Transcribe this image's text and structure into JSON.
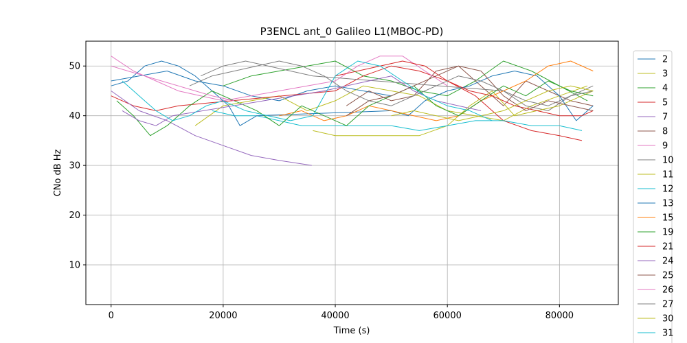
{
  "chart_data": {
    "type": "line",
    "title": "P3ENCL ant_0 Galileo L1(MBOC-PD)",
    "xlabel": "Time (s)",
    "ylabel": "CNo dB Hz",
    "xlim": [
      -4500,
      90500
    ],
    "ylim": [
      2,
      55
    ],
    "xticks": [
      0,
      20000,
      40000,
      60000,
      80000
    ],
    "yticks": [
      10,
      20,
      30,
      40,
      50
    ],
    "grid": true,
    "legend_position": "right-outside",
    "series": [
      {
        "name": "2",
        "color": "#1f77b4",
        "points": [
          [
            0,
            47
          ],
          [
            5000,
            48
          ],
          [
            10000,
            49
          ],
          [
            15000,
            47
          ],
          [
            20000,
            46
          ],
          [
            25000,
            44
          ],
          [
            30000,
            43
          ],
          [
            35000,
            45
          ],
          [
            40000,
            46
          ],
          [
            45000,
            45
          ],
          [
            50000,
            44
          ]
        ]
      },
      {
        "name": "3",
        "color": "#bcbd22",
        "points": [
          [
            15000,
            38
          ],
          [
            20000,
            42
          ],
          [
            25000,
            43
          ],
          [
            30000,
            44
          ],
          [
            35000,
            41
          ],
          [
            40000,
            43
          ],
          [
            45000,
            46
          ],
          [
            50000,
            45
          ],
          [
            55000,
            44
          ],
          [
            60000,
            41
          ],
          [
            65000,
            40
          ],
          [
            70000,
            39
          ],
          [
            75000,
            42
          ],
          [
            80000,
            44
          ],
          [
            85000,
            46
          ]
        ]
      },
      {
        "name": "4",
        "color": "#2ca02c",
        "points": [
          [
            20000,
            46
          ],
          [
            25000,
            48
          ],
          [
            30000,
            49
          ],
          [
            35000,
            50
          ],
          [
            40000,
            51
          ],
          [
            45000,
            48
          ],
          [
            50000,
            47
          ],
          [
            55000,
            45
          ],
          [
            60000,
            44
          ],
          [
            65000,
            47
          ],
          [
            70000,
            51
          ],
          [
            75000,
            49
          ],
          [
            80000,
            46
          ],
          [
            85000,
            43
          ]
        ]
      },
      {
        "name": "5",
        "color": "#d62728",
        "points": [
          [
            0,
            44
          ],
          [
            4000,
            42
          ],
          [
            8000,
            41
          ],
          [
            12000,
            42
          ],
          [
            40000,
            45
          ],
          [
            45000,
            48
          ],
          [
            50000,
            50
          ],
          [
            55000,
            49
          ],
          [
            60000,
            47
          ],
          [
            65000,
            44
          ],
          [
            70000,
            39
          ],
          [
            75000,
            37
          ],
          [
            80000,
            36
          ],
          [
            84000,
            35
          ]
        ]
      },
      {
        "name": "7",
        "color": "#9467bd",
        "points": [
          [
            0,
            45
          ],
          [
            5000,
            41
          ],
          [
            10000,
            39
          ],
          [
            15000,
            36
          ],
          [
            20000,
            34
          ],
          [
            25000,
            32
          ],
          [
            30000,
            31
          ],
          [
            35800,
            30
          ]
        ]
      },
      {
        "name": "8",
        "color": "#8c564b",
        "points": [
          [
            42000,
            42
          ],
          [
            46000,
            45
          ],
          [
            50000,
            43
          ],
          [
            54000,
            44
          ],
          [
            58000,
            49
          ],
          [
            62000,
            50
          ],
          [
            66000,
            46
          ],
          [
            70000,
            42
          ],
          [
            74000,
            47
          ],
          [
            78000,
            45
          ],
          [
            82000,
            43
          ],
          [
            86000,
            42
          ]
        ]
      },
      {
        "name": "9",
        "color": "#e377c2",
        "points": [
          [
            0,
            52
          ],
          [
            4000,
            49
          ],
          [
            8000,
            47
          ],
          [
            12000,
            45
          ],
          [
            16000,
            44
          ],
          [
            20000,
            43
          ],
          [
            40000,
            47
          ],
          [
            44000,
            50
          ],
          [
            48000,
            52
          ],
          [
            52000,
            52
          ],
          [
            56000,
            49
          ],
          [
            60000,
            46
          ]
        ]
      },
      {
        "name": "10",
        "color": "#7f7f7f",
        "points": [
          [
            16000,
            48
          ],
          [
            20000,
            50
          ],
          [
            24000,
            51
          ],
          [
            28000,
            50
          ],
          [
            32000,
            49
          ],
          [
            36000,
            48
          ],
          [
            70000,
            45
          ],
          [
            74000,
            42
          ],
          [
            78000,
            41
          ],
          [
            82000,
            44
          ],
          [
            86000,
            46
          ]
        ]
      },
      {
        "name": "11",
        "color": "#bcbd22",
        "points": [
          [
            36000,
            37
          ],
          [
            40000,
            36
          ],
          [
            55000,
            36
          ],
          [
            60000,
            38
          ],
          [
            64000,
            42
          ],
          [
            68000,
            45
          ],
          [
            72000,
            40
          ],
          [
            76000,
            41
          ],
          [
            80000,
            42
          ],
          [
            84000,
            44
          ],
          [
            86000,
            45
          ]
        ]
      },
      {
        "name": "12",
        "color": "#17becf",
        "points": [
          [
            18000,
            41
          ],
          [
            22000,
            40
          ],
          [
            26000,
            40
          ],
          [
            30000,
            39
          ],
          [
            34000,
            38
          ],
          [
            38000,
            38
          ],
          [
            50000,
            38
          ],
          [
            55000,
            37
          ],
          [
            60000,
            38
          ],
          [
            65000,
            39
          ],
          [
            70000,
            39
          ],
          [
            75000,
            38
          ],
          [
            80000,
            38
          ],
          [
            84000,
            37
          ]
        ]
      },
      {
        "name": "13",
        "color": "#1f77b4",
        "points": [
          [
            0,
            46
          ],
          [
            3000,
            47
          ],
          [
            6000,
            50
          ],
          [
            9000,
            51
          ],
          [
            12000,
            50
          ],
          [
            15000,
            48
          ],
          [
            18000,
            45
          ],
          [
            21000,
            42
          ],
          [
            23000,
            38
          ],
          [
            26000,
            40
          ],
          [
            50000,
            41
          ],
          [
            53000,
            40
          ],
          [
            56000,
            43
          ],
          [
            60000,
            45
          ],
          [
            64000,
            46
          ],
          [
            68000,
            48
          ],
          [
            72000,
            49
          ],
          [
            76000,
            48
          ],
          [
            80000,
            44
          ],
          [
            83000,
            39
          ],
          [
            86000,
            42
          ]
        ]
      },
      {
        "name": "15",
        "color": "#ff7f0e",
        "points": [
          [
            30000,
            40
          ],
          [
            34000,
            41
          ],
          [
            38000,
            39
          ],
          [
            42000,
            40
          ],
          [
            46000,
            42
          ],
          [
            50000,
            41
          ],
          [
            54000,
            40
          ],
          [
            58000,
            39
          ],
          [
            62000,
            40
          ],
          [
            66000,
            43
          ],
          [
            70000,
            45
          ],
          [
            74000,
            47
          ],
          [
            78000,
            50
          ],
          [
            82000,
            51
          ],
          [
            86000,
            49
          ]
        ]
      },
      {
        "name": "19",
        "color": "#2ca02c",
        "points": [
          [
            1000,
            43
          ],
          [
            4000,
            40
          ],
          [
            7000,
            36
          ],
          [
            10000,
            38
          ],
          [
            14000,
            42
          ],
          [
            18000,
            45
          ],
          [
            22000,
            43
          ],
          [
            26000,
            41
          ],
          [
            30000,
            38
          ],
          [
            34000,
            42
          ],
          [
            38000,
            40
          ],
          [
            42000,
            38
          ],
          [
            46000,
            42
          ],
          [
            50000,
            44
          ],
          [
            54000,
            46
          ],
          [
            58000,
            42
          ],
          [
            62000,
            40
          ],
          [
            66000,
            43
          ],
          [
            70000,
            46
          ],
          [
            74000,
            44
          ],
          [
            78000,
            47
          ],
          [
            82000,
            45
          ],
          [
            86000,
            44
          ]
        ]
      },
      {
        "name": "21",
        "color": "#d62728",
        "points": [
          [
            40000,
            48
          ],
          [
            44000,
            49
          ],
          [
            48000,
            50
          ],
          [
            52000,
            51
          ],
          [
            56000,
            50
          ],
          [
            60000,
            47
          ],
          [
            64000,
            45
          ],
          [
            68000,
            44
          ],
          [
            72000,
            42
          ],
          [
            76000,
            41
          ],
          [
            80000,
            40
          ],
          [
            84000,
            40
          ],
          [
            86000,
            41
          ]
        ]
      },
      {
        "name": "24",
        "color": "#9467bd",
        "points": [
          [
            2000,
            41
          ],
          [
            5000,
            39
          ],
          [
            8000,
            38
          ],
          [
            11000,
            40
          ],
          [
            38000,
            45
          ],
          [
            42000,
            46
          ],
          [
            46000,
            47
          ],
          [
            50000,
            48
          ],
          [
            54000,
            45
          ],
          [
            58000,
            43
          ],
          [
            62000,
            42
          ],
          [
            66000,
            41
          ]
        ]
      },
      {
        "name": "25",
        "color": "#8c564b",
        "points": [
          [
            42000,
            40
          ],
          [
            46000,
            43
          ],
          [
            50000,
            44
          ],
          [
            54000,
            46
          ],
          [
            58000,
            48
          ],
          [
            62000,
            50
          ],
          [
            66000,
            49
          ],
          [
            70000,
            44
          ],
          [
            74000,
            41
          ],
          [
            78000,
            43
          ],
          [
            82000,
            42
          ],
          [
            86000,
            41
          ]
        ]
      },
      {
        "name": "26",
        "color": "#e377c2",
        "points": [
          [
            0,
            50
          ],
          [
            3000,
            49
          ],
          [
            6000,
            48
          ],
          [
            9000,
            47
          ],
          [
            12000,
            46
          ],
          [
            15000,
            45
          ],
          [
            18000,
            44
          ],
          [
            22000,
            43
          ]
        ]
      },
      {
        "name": "27",
        "color": "#7f7f7f",
        "points": [
          [
            14000,
            46
          ],
          [
            18000,
            48
          ],
          [
            22000,
            49
          ],
          [
            26000,
            50
          ],
          [
            30000,
            51
          ],
          [
            34000,
            50
          ],
          [
            38000,
            48
          ],
          [
            42000,
            45
          ],
          [
            46000,
            43
          ],
          [
            50000,
            42
          ],
          [
            54000,
            44
          ],
          [
            58000,
            46
          ],
          [
            62000,
            48
          ],
          [
            66000,
            47
          ],
          [
            70000,
            45
          ],
          [
            74000,
            43
          ],
          [
            78000,
            42
          ],
          [
            82000,
            44
          ],
          [
            86000,
            45
          ]
        ]
      },
      {
        "name": "30",
        "color": "#bcbd22",
        "points": [
          [
            50000,
            40
          ],
          [
            54000,
            41
          ],
          [
            58000,
            40
          ],
          [
            62000,
            39
          ],
          [
            66000,
            40
          ],
          [
            70000,
            41
          ],
          [
            74000,
            43
          ],
          [
            78000,
            45
          ],
          [
            82000,
            46
          ],
          [
            86000,
            45
          ]
        ]
      },
      {
        "name": "31",
        "color": "#17becf",
        "points": [
          [
            2000,
            47
          ],
          [
            5000,
            44
          ],
          [
            8000,
            41
          ],
          [
            11000,
            39
          ],
          [
            14000,
            40
          ],
          [
            17000,
            42
          ],
          [
            20000,
            43
          ],
          [
            24000,
            41
          ],
          [
            28000,
            40
          ],
          [
            32000,
            39
          ],
          [
            36000,
            40
          ],
          [
            40000,
            48
          ],
          [
            44000,
            51
          ],
          [
            48000,
            50
          ],
          [
            52000,
            47
          ],
          [
            56000,
            44
          ],
          [
            60000,
            42
          ],
          [
            64000,
            41
          ],
          [
            68000,
            39
          ]
        ]
      }
    ],
    "legend_entries": [
      "2",
      "3",
      "4",
      "5",
      "7",
      "8",
      "9",
      "10",
      "11",
      "12",
      "13",
      "15",
      "19",
      "21",
      "24",
      "25",
      "26",
      "27",
      "30",
      "31"
    ]
  }
}
